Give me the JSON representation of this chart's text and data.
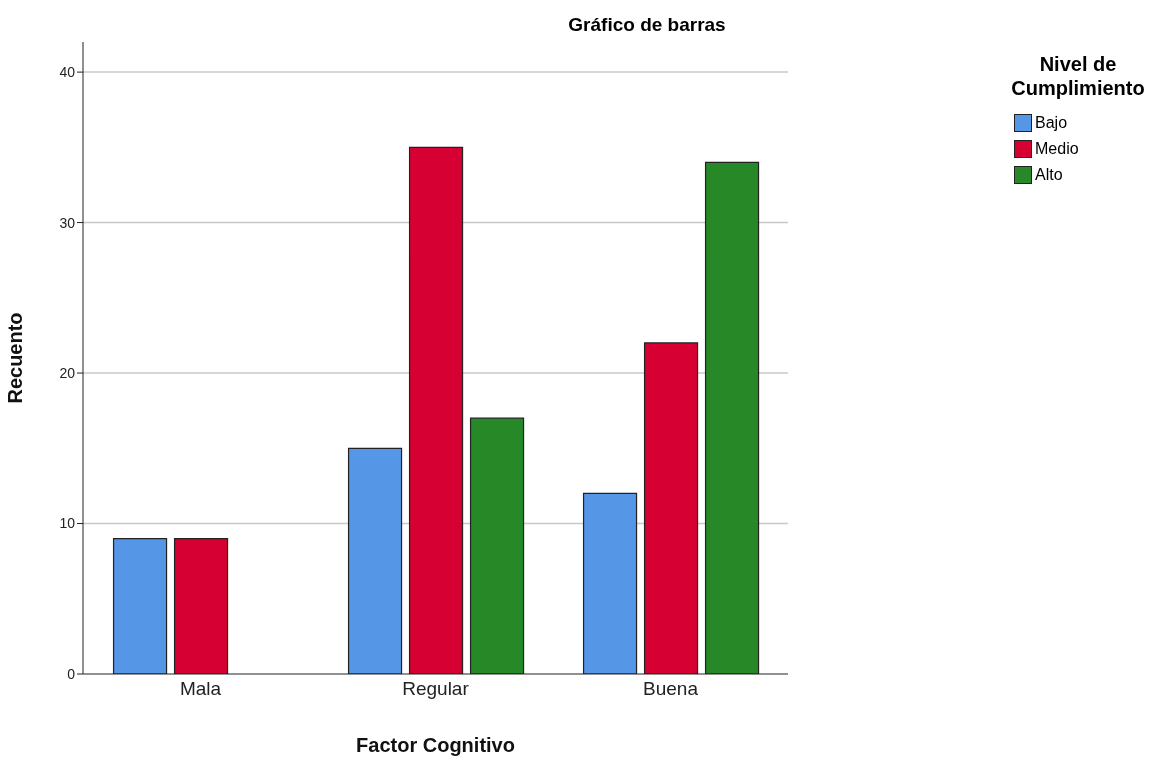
{
  "chart_data": {
    "type": "bar",
    "title": "Gráfico de barras",
    "xlabel": "Factor Cognitivo",
    "ylabel": "Recuento",
    "legend_title": "Nivel de Cumplimiento",
    "categories": [
      "Mala",
      "Regular",
      "Buena"
    ],
    "series": [
      {
        "name": "Bajo",
        "color": "#5596e6",
        "values": [
          9,
          15,
          12
        ]
      },
      {
        "name": "Medio",
        "color": "#d60032",
        "values": [
          9,
          35,
          22
        ]
      },
      {
        "name": "Alto",
        "color": "#268826",
        "values": [
          null,
          17,
          34
        ]
      }
    ],
    "ylim": [
      0,
      42
    ],
    "yticks": [
      0,
      10,
      20,
      30,
      40
    ],
    "grid": "y",
    "legend": "top right"
  }
}
